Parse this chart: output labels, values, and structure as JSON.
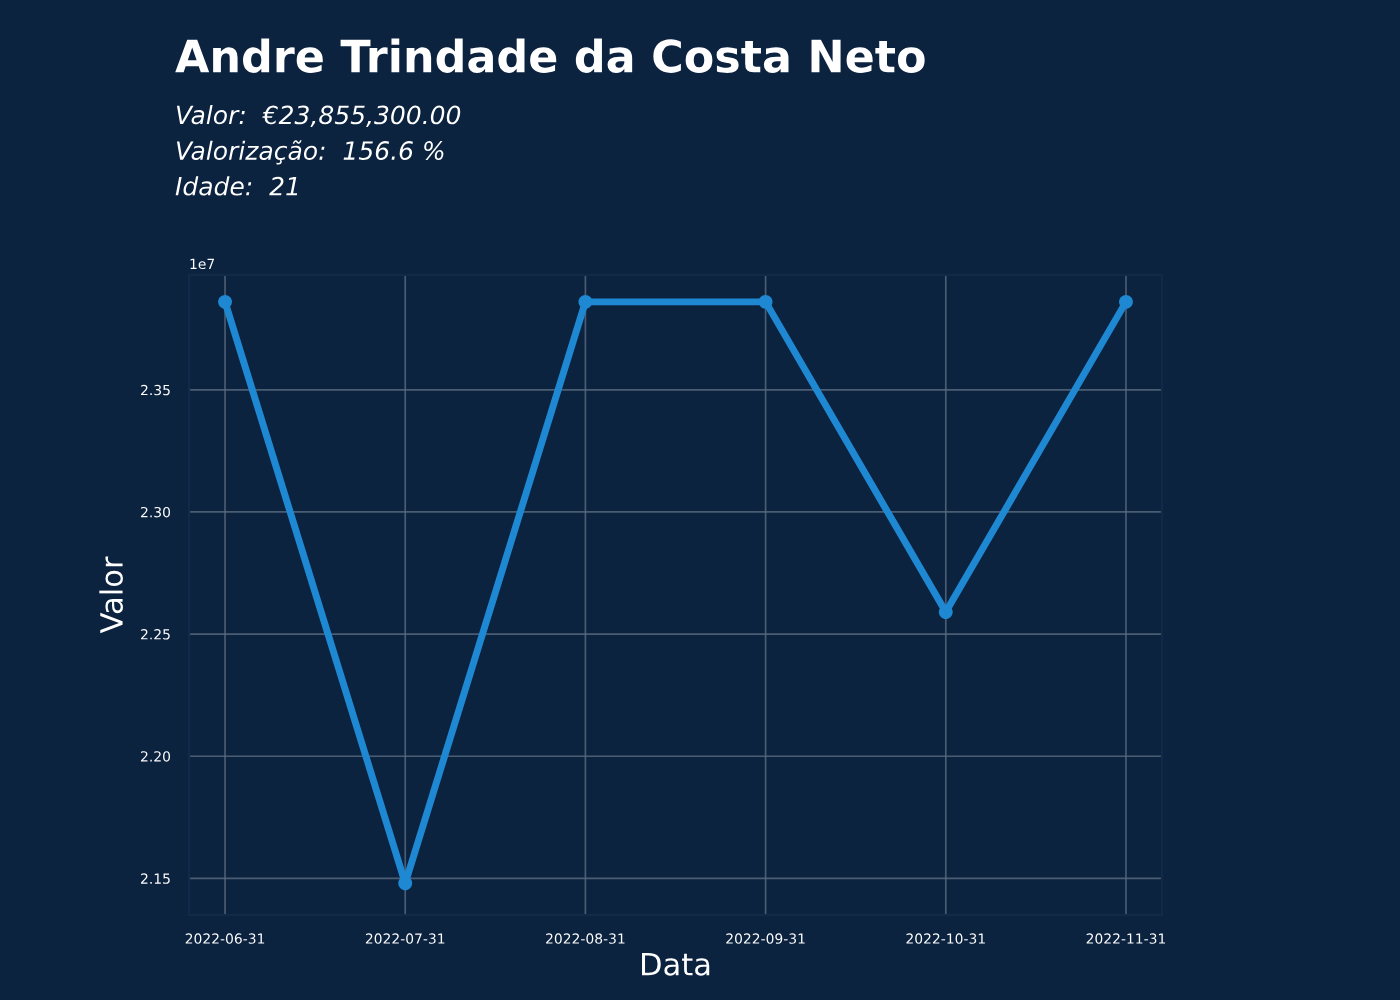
{
  "chart_data": {
    "type": "line",
    "title": "Andre Trindade da Costa Neto",
    "subtitle": "Valor:  €23,855,300.00\nValorização:  156.6 %\nIdade:  21",
    "xlabel": "Data",
    "ylabel": "Valor",
    "annotations": [
      "1e7"
    ],
    "categories": [
      "2022-06-31",
      "2022-07-31",
      "2022-08-31",
      "2022-09-31",
      "2022-10-31",
      "2022-11-31"
    ],
    "series": [
      {
        "color": "#1f88d2",
        "values": [
          2.386,
          2.148,
          2.386,
          2.386,
          2.259,
          2.386
        ]
      }
    ],
    "ylim": [
      2.135,
      2.397
    ],
    "yticks": [
      2.15,
      {
        "value": 2.2,
        "label": "2.20"
      },
      2.25,
      {
        "value": 2.3,
        "label": "2.30"
      },
      2.35
    ],
    "grid": true,
    "marker": "circle",
    "line_style": "solid"
  }
}
